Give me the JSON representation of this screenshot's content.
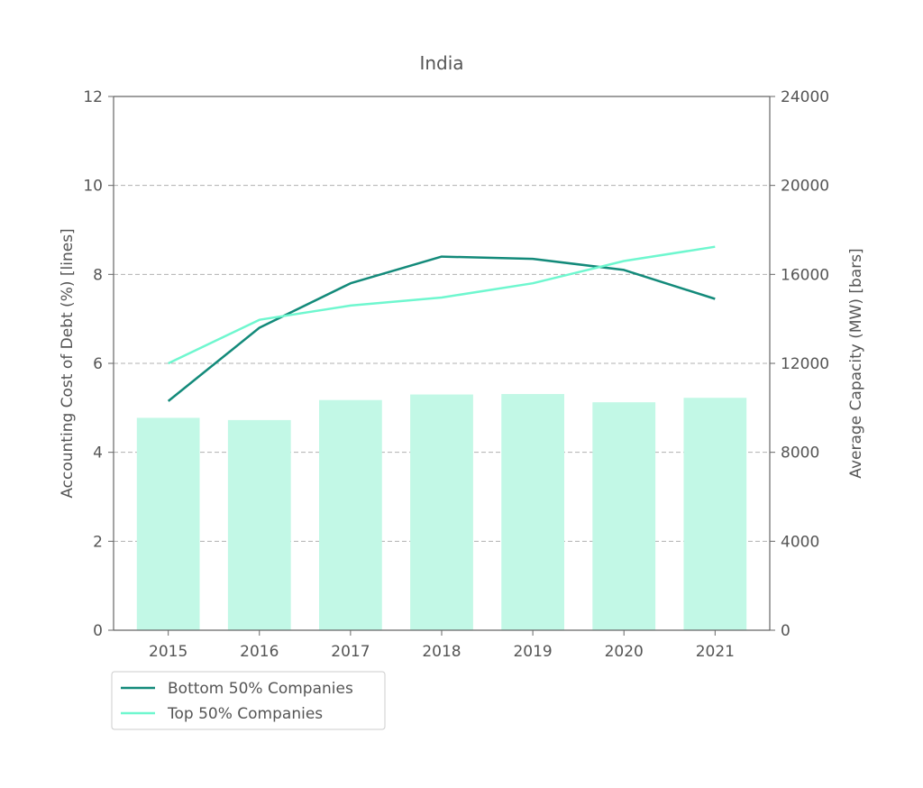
{
  "chart_data": {
    "type": "bar",
    "title": "India",
    "categories": [
      "2015",
      "2016",
      "2017",
      "2018",
      "2019",
      "2020",
      "2021"
    ],
    "y_left": {
      "label": "Accounting Cost of Debt (%)  [lines]",
      "ylim": [
        0,
        12
      ],
      "ticks": [
        "0",
        "2",
        "4",
        "6",
        "8",
        "10",
        "12"
      ]
    },
    "y_right": {
      "label": "Average Capacity (MW) [bars]",
      "ylim": [
        0,
        24000
      ],
      "ticks": [
        "0",
        "4000",
        "8000",
        "12000",
        "16000",
        "20000",
        "24000"
      ]
    },
    "bars": {
      "axis": "right",
      "color": "#c2f8e6",
      "values": [
        9550,
        9450,
        10350,
        10600,
        10620,
        10250,
        10450
      ]
    },
    "series": [
      {
        "name": "Bottom 50% Companies",
        "type": "line",
        "axis": "left",
        "color": "#138a7a",
        "values": [
          5.15,
          6.8,
          7.8,
          8.4,
          8.35,
          8.1,
          7.45
        ]
      },
      {
        "name": "Top 50% Companies",
        "type": "line",
        "axis": "left",
        "color": "#6ff7cf",
        "values": [
          6.0,
          6.98,
          7.3,
          7.48,
          7.8,
          8.3,
          8.62
        ]
      }
    ],
    "grid": "horizontal-dashed",
    "legend_placement": "bottom-left"
  }
}
